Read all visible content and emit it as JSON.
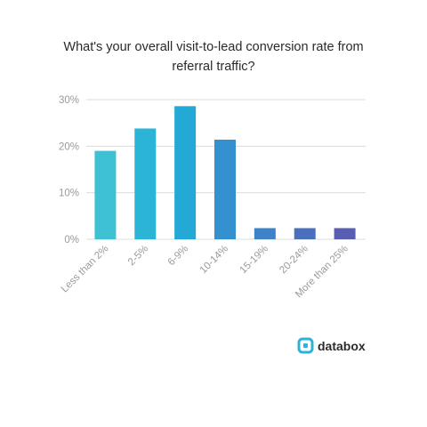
{
  "chart_data": {
    "type": "bar",
    "title": [
      "What's your overall visit-to-lead conversion rate from",
      "referral traffic?"
    ],
    "categories": [
      "Less than 2%",
      "2-5%",
      "6-9%",
      "10-14%",
      "15-19%",
      "20-24%",
      "More than 25%"
    ],
    "values": [
      19,
      23.8,
      28.6,
      21.4,
      2.4,
      2.4,
      2.4
    ],
    "colors": [
      "#3fc1d4",
      "#2cb4d6",
      "#24a9d7",
      "#3490cf",
      "#3e82c9",
      "#4a70bd",
      "#5a5eb0"
    ],
    "yticks": [
      "0%",
      "10%",
      "20%",
      "30%"
    ],
    "ylim": [
      0,
      30
    ],
    "xlabel": "",
    "ylabel": "",
    "grid": true
  },
  "brand": {
    "name": "databox",
    "icon": "databox-logo-icon",
    "icon_color": "#2cb4d6"
  }
}
